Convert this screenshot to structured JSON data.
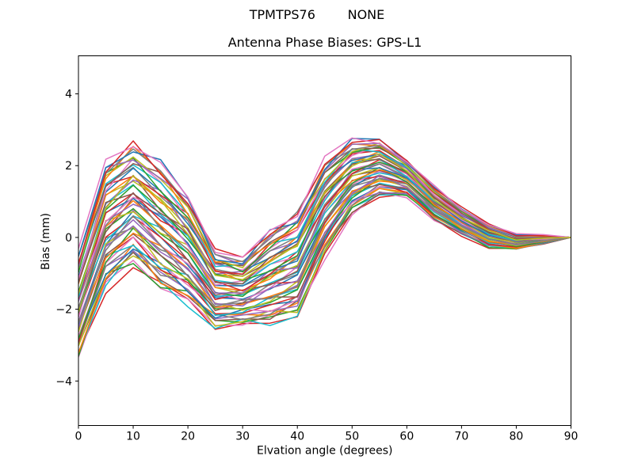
{
  "figure": {
    "background": "#ffffff",
    "text_color": "#000000",
    "frame_color": "#000000"
  },
  "suptitle": {
    "text": "TPMTPS76        NONE"
  },
  "chart_data": {
    "type": "line",
    "title": "Antenna Phase Biases: GPS-L1",
    "suptitle": "TPMTPS76        NONE",
    "xlabel": "Elvation angle (degrees)",
    "ylabel": "Bias (mm)",
    "xlim": [
      0,
      90
    ],
    "ylim": [
      -5.24,
      5.06
    ],
    "grid": false,
    "legend": "none",
    "line_width": 1.5,
    "xtick_values": [
      0,
      10,
      20,
      30,
      40,
      50,
      60,
      70,
      80,
      90
    ],
    "xtick_labels": [
      "0",
      "10",
      "20",
      "30",
      "40",
      "50",
      "60",
      "70",
      "80",
      "90"
    ],
    "ytick_values": [
      -4,
      -2,
      0,
      2,
      4
    ],
    "ytick_labels": [
      "−4",
      "−2",
      "0",
      "2",
      "4"
    ],
    "x": [
      0,
      5,
      10,
      15,
      20,
      25,
      30,
      35,
      40,
      45,
      50,
      55,
      60,
      65,
      70,
      75,
      80,
      85,
      90
    ],
    "band_mid": [
      -1.9,
      0.35,
      0.95,
      0.3,
      -0.35,
      -1.45,
      -1.5,
      -1.1,
      -0.75,
      0.8,
      1.7,
      1.95,
      1.65,
      0.95,
      0.45,
      0.05,
      -0.12,
      -0.05,
      0.0
    ],
    "band_half": [
      1.55,
      1.85,
      1.8,
      1.9,
      1.6,
      1.15,
      1.0,
      1.4,
      1.55,
      1.4,
      1.1,
      0.85,
      0.55,
      0.5,
      0.4,
      0.35,
      0.22,
      0.13,
      0.0
    ],
    "n_series": 56,
    "series_offsets": [
      -1.0,
      -0.31,
      0.38,
      -0.96,
      -0.27,
      0.42,
      -0.93,
      -0.24,
      0.45,
      -0.89,
      -0.2,
      0.49,
      -0.85,
      -0.16,
      0.53,
      -0.82,
      -0.13,
      0.56,
      -0.78,
      -0.09,
      0.6,
      -0.75,
      -0.05,
      0.64,
      -0.71,
      -0.02,
      0.67,
      -0.67,
      0.02,
      0.71,
      -0.64,
      0.05,
      0.75,
      -0.6,
      0.09,
      0.78,
      -0.56,
      0.13,
      0.82,
      -0.53,
      0.16,
      0.85,
      -0.49,
      0.2,
      0.89,
      -0.45,
      0.24,
      0.93,
      -0.42,
      0.27,
      0.96,
      -0.38,
      0.31,
      1.0,
      -0.35,
      0.35
    ],
    "offset_gain": 0.92,
    "jitter_scale": 0.15,
    "jitter_table": [
      0.55,
      -0.4,
      0.15,
      -0.75,
      0.85,
      0.0,
      -0.5,
      0.35,
      -0.15,
      0.7,
      -0.9,
      0.2,
      0.45,
      -0.6,
      0.05,
      -0.3
    ],
    "colors": [
      "#1f77b4",
      "#ff7f0e",
      "#2ca02c",
      "#d62728",
      "#9467bd",
      "#8c564b",
      "#e377c2",
      "#7f7f7f",
      "#bcbd22",
      "#17becf"
    ],
    "color_cycle_offset": 3
  }
}
